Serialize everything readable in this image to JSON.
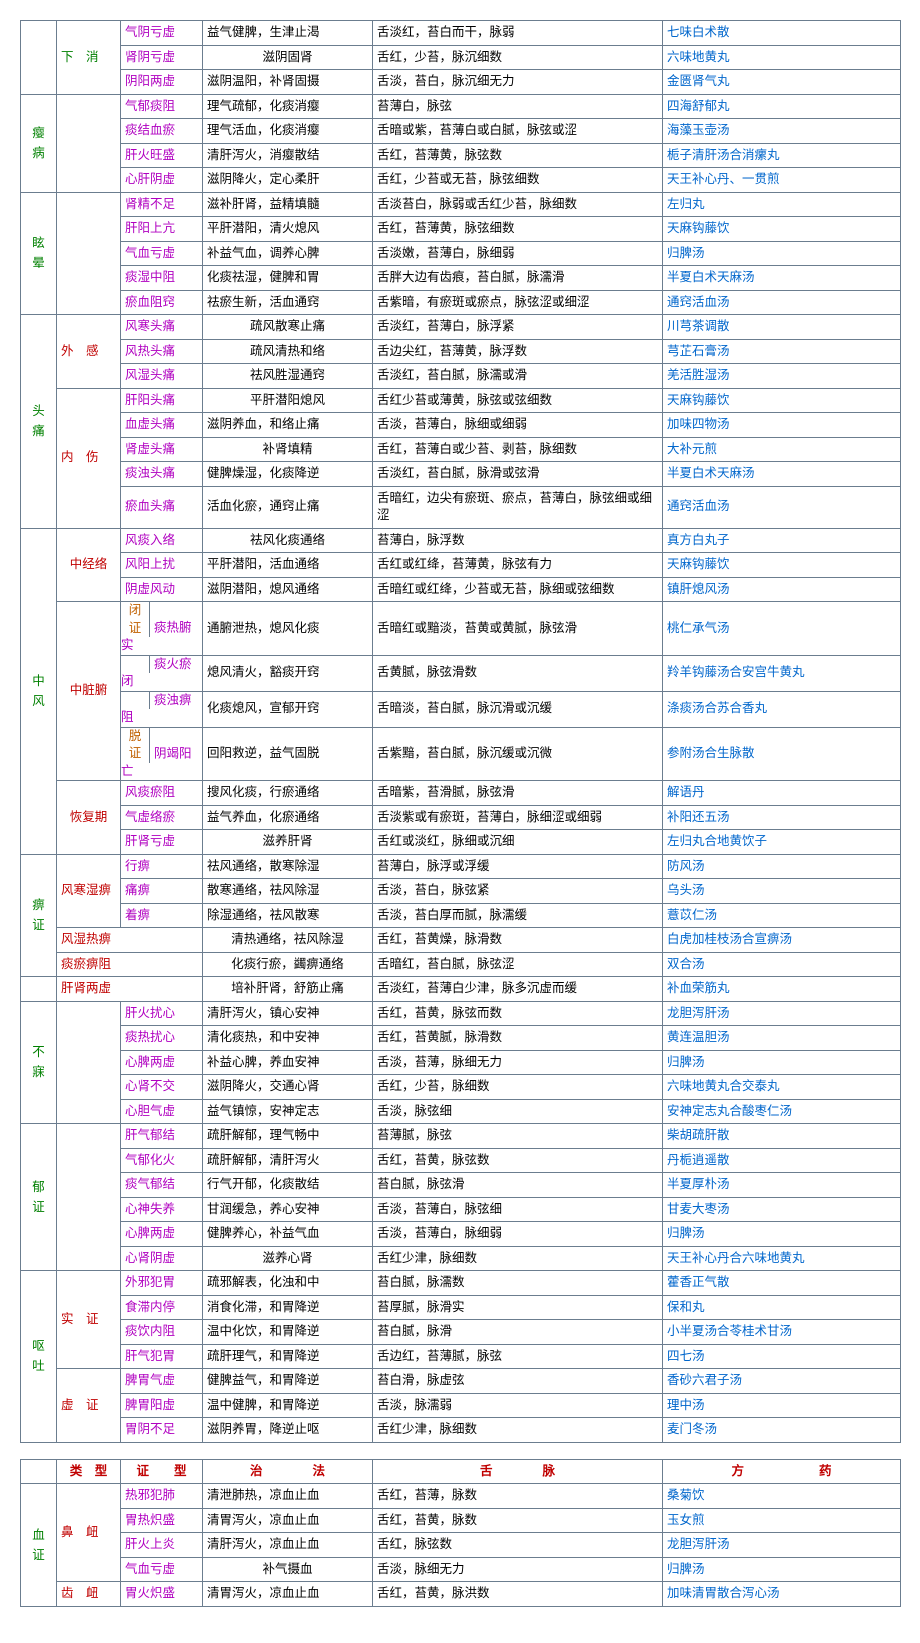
{
  "colors": {
    "disease": "#008000",
    "subtype": "#c00000",
    "pattern": "#b000c0",
    "formula": "#0066cc",
    "text": "#000000",
    "header": "#c00000",
    "subcat_brown": "#c06000"
  },
  "table1": [
    {
      "c1": {
        "t": "",
        "rs": 3
      },
      "c2": {
        "t": "下　消",
        "rs": 3,
        "color": "disease"
      },
      "c3": {
        "t": "气阴亏虚",
        "color": "pattern"
      },
      "c4": {
        "t": "益气健脾，生津止渴"
      },
      "c5": {
        "t": "舌淡红，苔白而干，脉弱"
      },
      "c6": {
        "t": "七味白术散",
        "color": "formula"
      }
    },
    {
      "c3": {
        "t": "肾阴亏虚",
        "color": "pattern"
      },
      "c4": {
        "t": "滋阴固肾",
        "align": "center"
      },
      "c5": {
        "t": "舌红，少苔，脉沉细数"
      },
      "c6": {
        "t": "六味地黄丸",
        "color": "formula"
      }
    },
    {
      "c3": {
        "t": "阴阳两虚",
        "color": "pattern"
      },
      "c4": {
        "t": "滋阴温阳，补肾固摄"
      },
      "c5": {
        "t": "舌淡，苔白，脉沉细无力"
      },
      "c6": {
        "t": "金匮肾气丸",
        "color": "formula"
      }
    },
    {
      "thick": true,
      "c1": {
        "t": "瘿病",
        "rs": 4,
        "color": "disease",
        "v": true
      },
      "c2": {
        "t": "",
        "rs": 4
      },
      "c3": {
        "t": "气郁痰阻",
        "color": "pattern"
      },
      "c4": {
        "t": "理气疏郁，化痰消瘿"
      },
      "c5": {
        "t": "苔薄白，脉弦"
      },
      "c6": {
        "t": "四海舒郁丸",
        "color": "formula"
      }
    },
    {
      "c3": {
        "t": "痰结血瘀",
        "color": "pattern"
      },
      "c4": {
        "t": "理气活血，化痰消瘿"
      },
      "c5": {
        "t": "舌暗或紫，苔薄白或白腻，脉弦或涩"
      },
      "c6": {
        "t": "海藻玉壶汤",
        "color": "formula"
      }
    },
    {
      "c3": {
        "t": "肝火旺盛",
        "color": "pattern"
      },
      "c4": {
        "t": "清肝泻火，消瘿散结"
      },
      "c5": {
        "t": "舌红，苔薄黄，脉弦数"
      },
      "c6": {
        "t": "栀子清肝汤合消瘰丸",
        "color": "formula"
      }
    },
    {
      "c3": {
        "t": "心肝阴虚",
        "color": "pattern"
      },
      "c4": {
        "t": "滋阴降火，定心柔肝"
      },
      "c5": {
        "t": "舌红，少苔或无苔，脉弦细数"
      },
      "c6": {
        "t": "天王补心丹、一贯煎",
        "color": "formula"
      }
    },
    {
      "thick": true,
      "c1": {
        "t": "眩晕",
        "rs": 5,
        "color": "disease",
        "v": true
      },
      "c2": {
        "t": "",
        "rs": 5
      },
      "c3": {
        "t": "肾精不足",
        "color": "pattern"
      },
      "c4": {
        "t": "滋补肝肾，益精填髓"
      },
      "c5": {
        "t": "舌淡苔白，脉弱或舌红少苔，脉细数"
      },
      "c6": {
        "t": "左归丸",
        "color": "formula"
      }
    },
    {
      "c3": {
        "t": "肝阳上亢",
        "color": "pattern"
      },
      "c4": {
        "t": "平肝潜阳，清火熄风"
      },
      "c5": {
        "t": "舌红，苔薄黄，脉弦细数"
      },
      "c6": {
        "t": "天麻钩藤饮",
        "color": "formula"
      }
    },
    {
      "c3": {
        "t": "气血亏虚",
        "color": "pattern"
      },
      "c4": {
        "t": "补益气血，调养心脾"
      },
      "c5": {
        "t": "舌淡嫩，苔薄白，脉细弱"
      },
      "c6": {
        "t": "归脾汤",
        "color": "formula"
      }
    },
    {
      "c3": {
        "t": "痰湿中阻",
        "color": "pattern"
      },
      "c4": {
        "t": "化痰祛湿，健脾和胃"
      },
      "c5": {
        "t": "舌胖大边有齿痕，苔白腻，脉濡滑"
      },
      "c6": {
        "t": "半夏白术天麻汤",
        "color": "formula"
      }
    },
    {
      "c3": {
        "t": "瘀血阻窍",
        "color": "pattern"
      },
      "c4": {
        "t": "祛瘀生新，活血通窍"
      },
      "c5": {
        "t": "舌紫暗，有瘀斑或瘀点，脉弦涩或细涩"
      },
      "c6": {
        "t": "通窍活血汤",
        "color": "formula"
      }
    },
    {
      "thick": true,
      "c1": {
        "t": "头痛",
        "rs": 8,
        "color": "disease",
        "v": true
      },
      "c2": {
        "t": "外　感",
        "rs": 3,
        "color": "subtype"
      },
      "c3": {
        "t": "风寒头痛",
        "color": "pattern"
      },
      "c4": {
        "t": "疏风散寒止痛",
        "align": "center"
      },
      "c5": {
        "t": "舌淡红，苔薄白，脉浮紧"
      },
      "c6": {
        "t": "川芎茶调散",
        "color": "formula"
      }
    },
    {
      "c3": {
        "t": "风热头痛",
        "color": "pattern"
      },
      "c4": {
        "t": "疏风清热和络",
        "align": "center"
      },
      "c5": {
        "t": "舌边尖红，苔薄黄，脉浮数"
      },
      "c6": {
        "t": "芎芷石膏汤",
        "color": "formula"
      }
    },
    {
      "c3": {
        "t": "风湿头痛",
        "color": "pattern"
      },
      "c4": {
        "t": "祛风胜湿通窍",
        "align": "center"
      },
      "c5": {
        "t": "舌淡红，苔白腻，脉濡或滑"
      },
      "c6": {
        "t": "羌活胜湿汤",
        "color": "formula"
      }
    },
    {
      "c2": {
        "t": "内　伤",
        "rs": 5,
        "color": "subtype"
      },
      "c3": {
        "t": "肝阳头痛",
        "color": "pattern"
      },
      "c4": {
        "t": "平肝潜阳熄风",
        "align": "center"
      },
      "c5": {
        "t": "舌红少苔或薄黄，脉弦或弦细数"
      },
      "c6": {
        "t": "天麻钩藤饮",
        "color": "formula"
      }
    },
    {
      "c3": {
        "t": "血虚头痛",
        "color": "pattern"
      },
      "c4": {
        "t": "滋阴养血，和络止痛"
      },
      "c5": {
        "t": "舌淡，苔薄白，脉细或细弱"
      },
      "c6": {
        "t": "加味四物汤",
        "color": "formula"
      }
    },
    {
      "c3": {
        "t": "肾虚头痛",
        "color": "pattern"
      },
      "c4": {
        "t": "补肾填精",
        "align": "center"
      },
      "c5": {
        "t": "舌红，苔薄白或少苔、剥苔，脉细数"
      },
      "c6": {
        "t": "大补元煎",
        "color": "formula"
      }
    },
    {
      "c3": {
        "t": "痰浊头痛",
        "color": "pattern"
      },
      "c4": {
        "t": "健脾燥湿，化痰降逆"
      },
      "c5": {
        "t": "舌淡红，苔白腻，脉滑或弦滑"
      },
      "c6": {
        "t": "半夏白术天麻汤",
        "color": "formula"
      }
    },
    {
      "c3": {
        "t": "瘀血头痛",
        "color": "pattern"
      },
      "c4": {
        "t": "活血化瘀，通窍止痛"
      },
      "c5": {
        "t": "舌暗红，边尖有瘀斑、瘀点，苔薄白，脉弦细或细涩"
      },
      "c6": {
        "t": "通窍活血汤",
        "color": "formula"
      }
    }
  ],
  "table1b": {
    "zhongfeng": {
      "disease": "中风",
      "groups": [
        {
          "name": "中经络",
          "rows": [
            {
              "p": "风痰入络",
              "m": "祛风化痰通络",
              "align": "center",
              "s": "苔薄白，脉浮数",
              "f": "真方白丸子"
            },
            {
              "p": "风阳上扰",
              "m": "平肝潜阳，活血通络",
              "s": "舌红或红绛，苔薄黄，脉弦有力",
              "f": "天麻钩藤饮"
            },
            {
              "p": "阴虚风动",
              "m": "滋阴潜阳，熄风通络",
              "s": "舌暗红或红绛，少苔或无苔，脉细或弦细数",
              "f": "镇肝熄风汤"
            }
          ]
        },
        {
          "name": "中脏腑",
          "sub": [
            {
              "tag": "闭证",
              "rows": [
                {
                  "p": "痰热腑实",
                  "m": "通腑泄热，熄风化痰",
                  "s": "舌暗红或黯淡，苔黄或黄腻，脉弦滑",
                  "f": "桃仁承气汤"
                },
                {
                  "p": "痰火瘀闭",
                  "m": "熄风清火，豁痰开窍",
                  "s": "舌黄腻，脉弦滑数",
                  "f": "羚羊钩藤汤合安宫牛黄丸"
                },
                {
                  "p": "痰浊痹阻",
                  "m": "化痰熄风，宣郁开窍",
                  "s": "舌暗淡，苔白腻，脉沉滑或沉缓",
                  "f": "涤痰汤合苏合香丸"
                }
              ]
            },
            {
              "tag": "脱证",
              "rows": [
                {
                  "p": "阴竭阳亡",
                  "m": "回阳救逆，益气固脱",
                  "s": "舌紫黯，苔白腻，脉沉缓或沉微",
                  "f": "参附汤合生脉散"
                }
              ]
            }
          ]
        },
        {
          "name": "恢复期",
          "rows": [
            {
              "p": "风痰瘀阻",
              "m": "搜风化痰，行瘀通络",
              "s": "舌暗紫，苔滑腻，脉弦滑",
              "f": "解语丹"
            },
            {
              "p": "气虚络瘀",
              "m": "益气养血，化瘀通络",
              "s": "舌淡紫或有瘀斑，苔薄白，脉细涩或细弱",
              "f": "补阳还五汤"
            },
            {
              "p": "肝肾亏虚",
              "m": "滋养肝肾",
              "align": "center",
              "s": "舌红或淡红，脉细或沉细",
              "f": "左归丸合地黄饮子"
            }
          ]
        }
      ]
    }
  },
  "table1c": [
    {
      "thick": true,
      "c1": {
        "t": "痹证",
        "rs": 5,
        "color": "disease",
        "v": true
      },
      "c2": {
        "t": "风寒湿痹",
        "cs": 1,
        "rs": 3,
        "color": "subtype"
      },
      "c3": {
        "t": "行痹",
        "color": "pattern"
      },
      "c4": {
        "t": "祛风通络，散寒除湿"
      },
      "c5": {
        "t": "苔薄白，脉浮或浮缓"
      },
      "c6": {
        "t": "防风汤",
        "color": "formula"
      }
    },
    {
      "c3": {
        "t": "痛痹",
        "color": "pattern"
      },
      "c4": {
        "t": "散寒通络，祛风除湿"
      },
      "c5": {
        "t": "舌淡，苔白，脉弦紧"
      },
      "c6": {
        "t": "乌头汤",
        "color": "formula"
      }
    },
    {
      "c3": {
        "t": "着痹",
        "color": "pattern"
      },
      "c4": {
        "t": "除湿通络，祛风散寒"
      },
      "c5": {
        "t": "舌淡，苔白厚而腻，脉濡缓"
      },
      "c6": {
        "t": "薏苡仁汤",
        "color": "formula"
      }
    },
    {
      "c2": {
        "t": "风湿热痹",
        "color": "subtype",
        "cs": 2
      },
      "c4": {
        "t": "清热通络，祛风除湿",
        "align": "center"
      },
      "c5": {
        "t": "舌红，苔黄燥，脉滑数"
      },
      "c6": {
        "t": "白虎加桂枝汤合宣痹汤",
        "color": "formula"
      }
    },
    {
      "c2": {
        "t": "痰瘀痹阻",
        "color": "subtype",
        "cs": 2
      },
      "c4": {
        "t": "化痰行瘀，蠲痹通络",
        "align": "center"
      },
      "c5": {
        "t": "舌暗红，苔白腻，脉弦涩"
      },
      "c6": {
        "t": "双合汤",
        "color": "formula"
      }
    },
    {
      "c1": {
        "t": ""
      },
      "c2": {
        "t": "肝肾两虚",
        "color": "subtype",
        "cs": 2
      },
      "c4": {
        "t": "培补肝肾，舒筋止痛",
        "align": "center"
      },
      "c5": {
        "t": "舌淡红，苔薄白少津，脉多沉虚而缓"
      },
      "c6": {
        "t": "补血荣筋丸",
        "color": "formula"
      }
    },
    {
      "thick": true,
      "c1": {
        "t": "不寐",
        "rs": 5,
        "color": "disease",
        "v": true
      },
      "c2": {
        "t": "",
        "rs": 5
      },
      "c3": {
        "t": "肝火扰心",
        "color": "pattern"
      },
      "c4": {
        "t": "清肝泻火，镇心安神"
      },
      "c5": {
        "t": "舌红，苔黄，脉弦而数"
      },
      "c6": {
        "t": "龙胆泻肝汤",
        "color": "formula"
      }
    },
    {
      "c3": {
        "t": "痰热扰心",
        "color": "pattern"
      },
      "c4": {
        "t": "清化痰热，和中安神"
      },
      "c5": {
        "t": "舌红，苔黄腻，脉滑数"
      },
      "c6": {
        "t": "黄连温胆汤",
        "color": "formula"
      }
    },
    {
      "c3": {
        "t": "心脾两虚",
        "color": "pattern"
      },
      "c4": {
        "t": "补益心脾，养血安神"
      },
      "c5": {
        "t": "舌淡，苔薄，脉细无力"
      },
      "c6": {
        "t": "归脾汤",
        "color": "formula"
      }
    },
    {
      "c3": {
        "t": "心肾不交",
        "color": "pattern"
      },
      "c4": {
        "t": "滋阴降火，交通心肾"
      },
      "c5": {
        "t": "舌红，少苔，脉细数"
      },
      "c6": {
        "t": "六味地黄丸合交泰丸",
        "color": "formula"
      }
    },
    {
      "c3": {
        "t": "心胆气虚",
        "color": "pattern"
      },
      "c4": {
        "t": "益气镇惊，安神定志"
      },
      "c5": {
        "t": "舌淡，脉弦细"
      },
      "c6": {
        "t": "安神定志丸合酸枣仁汤",
        "color": "formula"
      }
    },
    {
      "thick": true,
      "c1": {
        "t": "郁证",
        "rs": 6,
        "color": "disease",
        "v": true
      },
      "c2": {
        "t": "",
        "rs": 6
      },
      "c3": {
        "t": "肝气郁结",
        "color": "pattern"
      },
      "c4": {
        "t": "疏肝解郁，理气畅中"
      },
      "c5": {
        "t": "苔薄腻，脉弦"
      },
      "c6": {
        "t": "柴胡疏肝散",
        "color": "formula"
      }
    },
    {
      "c3": {
        "t": "气郁化火",
        "color": "pattern"
      },
      "c4": {
        "t": "疏肝解郁，清肝泻火"
      },
      "c5": {
        "t": "舌红，苔黄，脉弦数"
      },
      "c6": {
        "t": "丹栀逍遥散",
        "color": "formula"
      }
    },
    {
      "c3": {
        "t": "痰气郁结",
        "color": "pattern"
      },
      "c4": {
        "t": "行气开郁，化痰散结"
      },
      "c5": {
        "t": "苔白腻，脉弦滑"
      },
      "c6": {
        "t": "半夏厚朴汤",
        "color": "formula"
      }
    },
    {
      "c3": {
        "t": "心神失养",
        "color": "pattern"
      },
      "c4": {
        "t": "甘润缓急，养心安神"
      },
      "c5": {
        "t": "舌淡，苔薄白，脉弦细"
      },
      "c6": {
        "t": "甘麦大枣汤",
        "color": "formula"
      }
    },
    {
      "c3": {
        "t": "心脾两虚",
        "color": "pattern"
      },
      "c4": {
        "t": "健脾养心，补益气血"
      },
      "c5": {
        "t": "舌淡，苔薄白，脉细弱"
      },
      "c6": {
        "t": "归脾汤",
        "color": "formula"
      }
    },
    {
      "c3": {
        "t": "心肾阴虚",
        "color": "pattern"
      },
      "c4": {
        "t": "滋养心肾",
        "align": "center"
      },
      "c5": {
        "t": "舌红少津，脉细数"
      },
      "c6": {
        "t": "天王补心丹合六味地黄丸",
        "color": "formula"
      }
    },
    {
      "thick": true,
      "c1": {
        "t": "呕吐",
        "rs": 7,
        "color": "disease",
        "v": true
      },
      "c2": {
        "t": "实　证",
        "rs": 4,
        "color": "subtype"
      },
      "c3": {
        "t": "外邪犯胃",
        "color": "pattern"
      },
      "c4": {
        "t": "疏邪解表，化浊和中"
      },
      "c5": {
        "t": "苔白腻，脉濡数"
      },
      "c6": {
        "t": "藿香正气散",
        "color": "formula"
      }
    },
    {
      "c3": {
        "t": "食滞内停",
        "color": "pattern"
      },
      "c4": {
        "t": "消食化滞，和胃降逆"
      },
      "c5": {
        "t": "苔厚腻，脉滑实"
      },
      "c6": {
        "t": "保和丸",
        "color": "formula"
      }
    },
    {
      "c3": {
        "t": "痰饮内阻",
        "color": "pattern"
      },
      "c4": {
        "t": "温中化饮，和胃降逆"
      },
      "c5": {
        "t": "苔白腻，脉滑"
      },
      "c6": {
        "t": "小半夏汤合苓桂术甘汤",
        "color": "formula"
      }
    },
    {
      "c3": {
        "t": "肝气犯胃",
        "color": "pattern"
      },
      "c4": {
        "t": "疏肝理气，和胃降逆"
      },
      "c5": {
        "t": "舌边红，苔薄腻，脉弦"
      },
      "c6": {
        "t": "四七汤",
        "color": "formula"
      }
    },
    {
      "c2": {
        "t": "虚　证",
        "rs": 3,
        "color": "subtype"
      },
      "c3": {
        "t": "脾胃气虚",
        "color": "pattern"
      },
      "c4": {
        "t": "健脾益气，和胃降逆"
      },
      "c5": {
        "t": "苔白滑，脉虚弦"
      },
      "c6": {
        "t": "香砂六君子汤",
        "color": "formula"
      }
    },
    {
      "c3": {
        "t": "脾胃阳虚",
        "color": "pattern"
      },
      "c4": {
        "t": "温中健脾，和胃降逆"
      },
      "c5": {
        "t": "舌淡，脉濡弱"
      },
      "c6": {
        "t": "理中汤",
        "color": "formula"
      }
    },
    {
      "c3": {
        "t": "胃阴不足",
        "color": "pattern"
      },
      "c4": {
        "t": "滋阴养胃，降逆止呕"
      },
      "c5": {
        "t": "舌红少津，脉细数"
      },
      "c6": {
        "t": "麦门冬汤",
        "color": "formula"
      }
    }
  ],
  "table2_header": {
    "c1": "",
    "c2": "类　型",
    "c3": "证　　型",
    "c4": "治　　　　法",
    "c5": "舌　　　　脉",
    "c6": "方　　　　　　药"
  },
  "table2": [
    {
      "c1": {
        "t": "血证",
        "rs": 5,
        "color": "disease",
        "v": true
      },
      "c2": {
        "t": "鼻　衄",
        "rs": 4,
        "color": "subtype"
      },
      "c3": {
        "t": "热邪犯肺",
        "color": "pattern"
      },
      "c4": {
        "t": "清泄肺热，凉血止血"
      },
      "c5": {
        "t": "舌红，苔薄，脉数"
      },
      "c6": {
        "t": "桑菊饮",
        "color": "formula"
      }
    },
    {
      "c3": {
        "t": "胃热炽盛",
        "color": "pattern"
      },
      "c4": {
        "t": "清胃泻火，凉血止血"
      },
      "c5": {
        "t": "舌红，苔黄，脉数"
      },
      "c6": {
        "t": "玉女煎",
        "color": "formula"
      }
    },
    {
      "c3": {
        "t": "肝火上炎",
        "color": "pattern"
      },
      "c4": {
        "t": "清肝泻火，凉血止血"
      },
      "c5": {
        "t": "舌红，脉弦数"
      },
      "c6": {
        "t": "龙胆泻肝汤",
        "color": "formula"
      }
    },
    {
      "c3": {
        "t": "气血亏虚",
        "color": "pattern"
      },
      "c4": {
        "t": "补气摄血",
        "align": "center"
      },
      "c5": {
        "t": "舌淡，脉细无力"
      },
      "c6": {
        "t": "归脾汤",
        "color": "formula"
      }
    },
    {
      "c2": {
        "t": "齿　衄",
        "color": "subtype"
      },
      "c3": {
        "t": "胃火炽盛",
        "color": "pattern"
      },
      "c4": {
        "t": "清胃泻火，凉血止血"
      },
      "c5": {
        "t": "舌红，苔黄，脉洪数"
      },
      "c6": {
        "t": "加味清胃散合泻心汤",
        "color": "formula"
      }
    }
  ]
}
